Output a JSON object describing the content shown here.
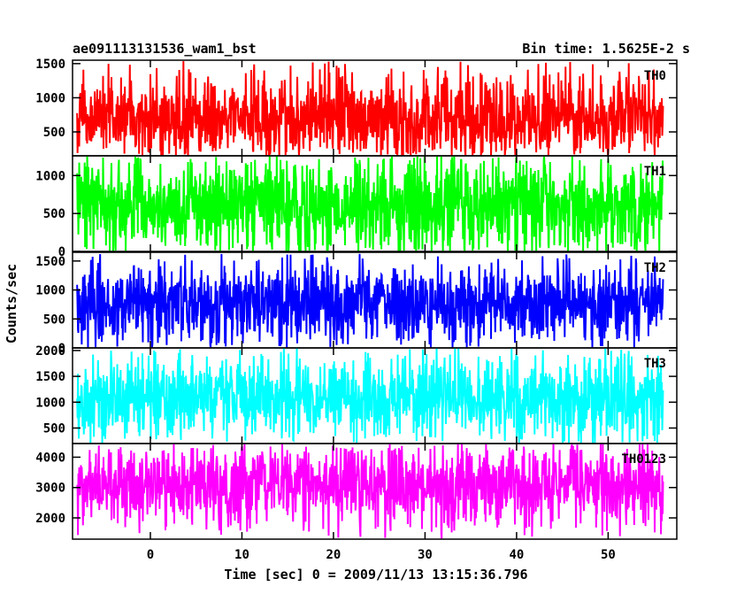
{
  "chart_data": {
    "type": "line",
    "title": "ae091113131536_wam1_bst",
    "subtitle": "Bin time: 1.5625E-2 s",
    "xlabel": "Time [sec] 0 = 2009/11/13 13:15:36.796",
    "ylabel": "Counts/sec",
    "xlim": [
      -8.5,
      57.5
    ],
    "x_range": [
      -8,
      56
    ],
    "x_ticks": [
      0,
      10,
      20,
      30,
      40,
      50
    ],
    "grid": false,
    "panels": [
      {
        "name": "TH0",
        "color": "#ff0000",
        "ylim": [
          150,
          1550
        ],
        "y_ticks": [
          500,
          1000,
          1500
        ],
        "typical_range": [
          380,
          1050
        ],
        "series_min": 150,
        "series_max": 1550,
        "mean": 710
      },
      {
        "name": "TH1",
        "color": "#00ff00",
        "ylim": [
          0,
          1260
        ],
        "y_ticks": [
          0,
          500,
          1000
        ],
        "typical_range": [
          250,
          950
        ],
        "series_min": 0,
        "series_max": 1260,
        "mean": 600
      },
      {
        "name": "TH2",
        "color": "#0000ff",
        "ylim": [
          0,
          1650
        ],
        "y_ticks": [
          0,
          500,
          1000,
          1500
        ],
        "typical_range": [
          380,
          1150
        ],
        "series_min": 0,
        "series_max": 1650,
        "mean": 760
      },
      {
        "name": "TH3",
        "color": "#00ffff",
        "ylim": [
          200,
          2050
        ],
        "y_ticks": [
          500,
          1000,
          1500,
          2000
        ],
        "typical_range": [
          650,
          1550
        ],
        "series_min": 200,
        "series_max": 2050,
        "mean": 1100
      },
      {
        "name": "TH0123",
        "color": "#ff00ff",
        "ylim": [
          1300,
          4450
        ],
        "y_ticks": [
          2000,
          3000,
          4000
        ],
        "typical_range": [
          2300,
          3800
        ],
        "series_min": 1300,
        "series_max": 4450,
        "mean": 3050
      }
    ]
  }
}
